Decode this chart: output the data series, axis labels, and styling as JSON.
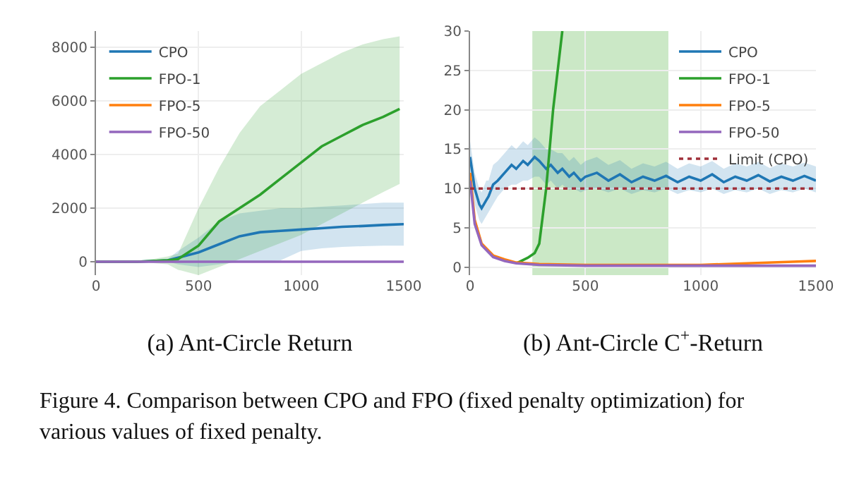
{
  "chart_data": [
    {
      "type": "line",
      "xlabel": "(a) Ant-Circle Return",
      "xlim": [
        0,
        1500
      ],
      "xticks": [
        0,
        500,
        1000,
        1500
      ],
      "ylim": [
        -500,
        8600
      ],
      "yticks": [
        0,
        2000,
        4000,
        6000,
        8000
      ],
      "grid": true,
      "legend": "top left",
      "series": [
        {
          "name": "CPO",
          "color": "#1f77b4",
          "x": [
            0,
            200,
            350,
            400,
            500,
            600,
            700,
            800,
            900,
            1000,
            1100,
            1200,
            1300,
            1400,
            1500
          ],
          "values": [
            0,
            0,
            50,
            150,
            350,
            650,
            950,
            1100,
            1150,
            1200,
            1250,
            1300,
            1330,
            1370,
            1400
          ],
          "lower": [
            0,
            0,
            0,
            -100,
            -200,
            -100,
            0,
            0,
            50,
            400,
            500,
            550,
            580,
            600,
            600
          ],
          "upper": [
            0,
            0,
            100,
            400,
            900,
            1500,
            1800,
            1900,
            2000,
            2000,
            2050,
            2100,
            2150,
            2200,
            2200
          ]
        },
        {
          "name": "FPO-1",
          "color": "#2ca02c",
          "x": [
            0,
            200,
            350,
            400,
            500,
            600,
            700,
            800,
            900,
            1000,
            1100,
            1200,
            1300,
            1400,
            1480
          ],
          "values": [
            0,
            0,
            50,
            100,
            600,
            1500,
            2000,
            2500,
            3100,
            3700,
            4300,
            4700,
            5100,
            5400,
            5700
          ],
          "lower": [
            0,
            0,
            -100,
            -300,
            -500,
            -200,
            100,
            400,
            700,
            1000,
            1400,
            1800,
            2200,
            2600,
            2900
          ],
          "upper": [
            0,
            0,
            200,
            300,
            2000,
            3500,
            4800,
            5800,
            6400,
            7000,
            7400,
            7800,
            8100,
            8300,
            8400
          ]
        },
        {
          "name": "FPO-5",
          "color": "#ff7f0e"
        },
        {
          "name": "FPO-50",
          "color": "#9467bd",
          "x": [
            0,
            1500
          ],
          "values": [
            0,
            0
          ]
        }
      ]
    },
    {
      "type": "line",
      "xlabel": "(b) Ant-Circle C$^{+}$-Return",
      "xlim": [
        0,
        1500
      ],
      "xticks": [
        0,
        500,
        1000,
        1500
      ],
      "ylim": [
        -1,
        30
      ],
      "yticks": [
        0,
        5,
        10,
        15,
        20,
        25,
        30
      ],
      "grid": true,
      "legend": "top right",
      "ref_lines": [
        {
          "axis": "y",
          "value": 10,
          "label": "Limit (CPO)",
          "color": "#a0303a",
          "line_style": "dotted"
        }
      ],
      "bands": [
        {
          "axis": "x",
          "from": 270,
          "to": 860,
          "color": "#a8d8a0"
        }
      ],
      "annotations": [
        "Figure 4. Comparison between CPO and FPO (fixed penalty optimization) for various values of fixed penalty."
      ],
      "series": [
        {
          "name": "CPO",
          "color": "#1f77b4",
          "x": [
            0,
            20,
            40,
            50,
            70,
            80,
            100,
            120,
            150,
            180,
            200,
            230,
            250,
            280,
            300,
            330,
            350,
            380,
            400,
            430,
            450,
            480,
            500,
            550,
            600,
            650,
            700,
            750,
            800,
            850,
            900,
            950,
            1000,
            1050,
            1100,
            1150,
            1200,
            1250,
            1300,
            1350,
            1400,
            1450,
            1500
          ],
          "values": [
            14,
            10,
            8,
            7.5,
            8.5,
            9,
            10.5,
            11,
            12,
            13,
            12.5,
            13.5,
            13,
            14,
            13.5,
            12.5,
            13,
            12,
            12.5,
            11.5,
            12,
            11,
            11.5,
            12,
            11,
            11.8,
            10.8,
            11.5,
            11,
            11.6,
            10.8,
            11.5,
            11,
            11.8,
            10.8,
            11.5,
            11,
            11.7,
            10.9,
            11.5,
            11,
            11.6,
            11
          ],
          "lower": [
            12,
            8,
            6,
            5.5,
            6.5,
            7,
            8,
            9,
            10,
            10.5,
            10.5,
            11,
            11,
            11.5,
            11.5,
            10.5,
            11,
            10,
            10.5,
            9.8,
            10,
            9.5,
            9.8,
            10,
            9.5,
            10,
            9.3,
            9.8,
            9.5,
            10,
            9.3,
            9.8,
            9.5,
            10,
            9.3,
            9.8,
            9.5,
            10,
            9.3,
            9.8,
            9.5,
            10,
            9.5
          ],
          "upper": [
            16,
            12,
            10,
            9.5,
            11,
            11,
            13,
            13.5,
            14.5,
            15.5,
            15,
            16,
            15.5,
            16.5,
            16,
            15,
            15,
            14.5,
            14.5,
            13.5,
            14,
            13,
            13.5,
            14,
            13,
            13.6,
            12.5,
            13.2,
            12.8,
            13.4,
            12.5,
            13.2,
            12.8,
            13.5,
            12.5,
            13.2,
            12.8,
            13.4,
            12.6,
            13.2,
            12.8,
            13.3,
            12.8
          ]
        },
        {
          "name": "FPO-1",
          "color": "#2ca02c",
          "x": [
            200,
            250,
            280,
            300,
            330,
            360,
            400
          ],
          "values": [
            0.5,
            1.2,
            1.8,
            3,
            10,
            20,
            30
          ]
        },
        {
          "name": "FPO-5",
          "color": "#ff7f0e",
          "x": [
            0,
            20,
            50,
            100,
            150,
            200,
            300,
            500,
            800,
            1000,
            1200,
            1400,
            1500
          ],
          "values": [
            12,
            6,
            3,
            1.5,
            1,
            0.6,
            0.4,
            0.3,
            0.3,
            0.3,
            0.5,
            0.7,
            0.8
          ]
        },
        {
          "name": "FPO-50",
          "color": "#9467bd",
          "x": [
            0,
            20,
            50,
            100,
            150,
            200,
            300,
            500,
            800,
            1000,
            1200,
            1500
          ],
          "values": [
            11,
            5.5,
            2.8,
            1.3,
            0.8,
            0.5,
            0.3,
            0.2,
            0.2,
            0.2,
            0.2,
            0.2
          ]
        }
      ]
    }
  ]
}
